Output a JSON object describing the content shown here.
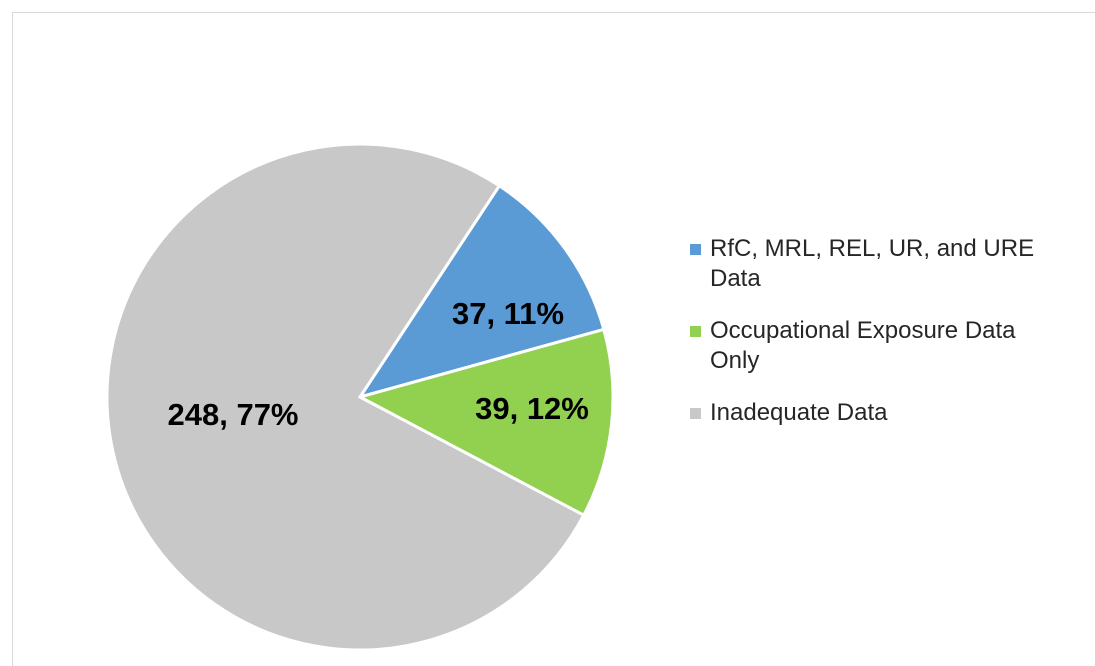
{
  "chart_data": {
    "type": "pie",
    "categories": [
      "RfC, MRL, REL, UR, and URE Data",
      "Occupational Exposure Data Only",
      "Inadequate Data"
    ],
    "values": [
      37,
      39,
      248
    ],
    "value_labels": [
      "37, 11%",
      "39, 12%",
      "248, 77%"
    ],
    "colors": [
      "#5b9bd5",
      "#92d050",
      "#c8c8c8"
    ],
    "legend": "right"
  }
}
